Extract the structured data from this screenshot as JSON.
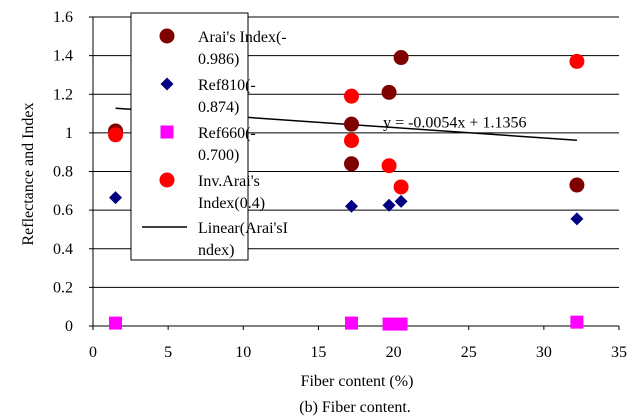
{
  "chart_data": {
    "type": "scatter",
    "xlabel": "Fiber content (%)",
    "ylabel": "Reflectance and Index",
    "xlim": [
      0,
      35
    ],
    "ylim": [
      0,
      1.6
    ],
    "xticks": [
      0,
      5,
      10,
      15,
      20,
      25,
      30,
      35
    ],
    "yticks": [
      0,
      0.2,
      0.4,
      0.6,
      0.8,
      1,
      1.2,
      1.4,
      1.6
    ],
    "ytick_labels": [
      "0",
      "0.2",
      "0.4",
      "0.6",
      "0.8",
      "1",
      "1.2",
      "1.4",
      "1.6"
    ],
    "grid": "horizontal",
    "legend_position": "upper-left",
    "caption": "(b) Fiber content.",
    "series": [
      {
        "name": "Arai's Index(-0.986)",
        "legend_lines": [
          "Arai's Index(-",
          "0.986)"
        ],
        "marker": "circle",
        "color": "#800000",
        "x": [
          1.5,
          17.2,
          17.2,
          19.7,
          20.5,
          32.2
        ],
        "y": [
          1.01,
          1.045,
          0.84,
          1.21,
          1.39,
          0.73
        ]
      },
      {
        "name": "Ref810(-0.874)",
        "legend_lines": [
          "Ref810(-",
          "0.874)"
        ],
        "marker": "diamond",
        "color": "#000080",
        "x": [
          1.5,
          17.2,
          19.7,
          20.5,
          32.2
        ],
        "y": [
          0.665,
          0.62,
          0.625,
          0.645,
          0.555
        ]
      },
      {
        "name": "Ref660(-0.700)",
        "legend_lines": [
          "Ref660(-",
          "0.700)"
        ],
        "marker": "square",
        "color": "#ff00ff",
        "x": [
          1.5,
          17.2,
          19.7,
          20.5,
          32.2
        ],
        "y": [
          0.015,
          0.015,
          0.01,
          0.01,
          0.02
        ]
      },
      {
        "name": "Inv.Arai's Index(0.4)",
        "legend_lines": [
          "Inv.Arai's",
          "Index(0.4)"
        ],
        "marker": "circle",
        "color": "#ff0000",
        "x": [
          1.5,
          17.2,
          17.2,
          19.7,
          20.5,
          32.2
        ],
        "y": [
          0.99,
          1.19,
          0.96,
          0.83,
          0.72,
          1.37
        ]
      },
      {
        "name": "Linear(Arai'sIndex)",
        "legend_lines": [
          "Linear(Arai'sI",
          "ndex)"
        ],
        "marker": "line",
        "color": "#000000",
        "trendline": {
          "slope": -0.0054,
          "intercept": 1.1356,
          "x_range": [
            1.5,
            32.2
          ]
        }
      }
    ],
    "annotations": [
      {
        "text": "y = -0.0054x + 1.1356",
        "x": 19.7,
        "y": 1.028
      }
    ]
  }
}
